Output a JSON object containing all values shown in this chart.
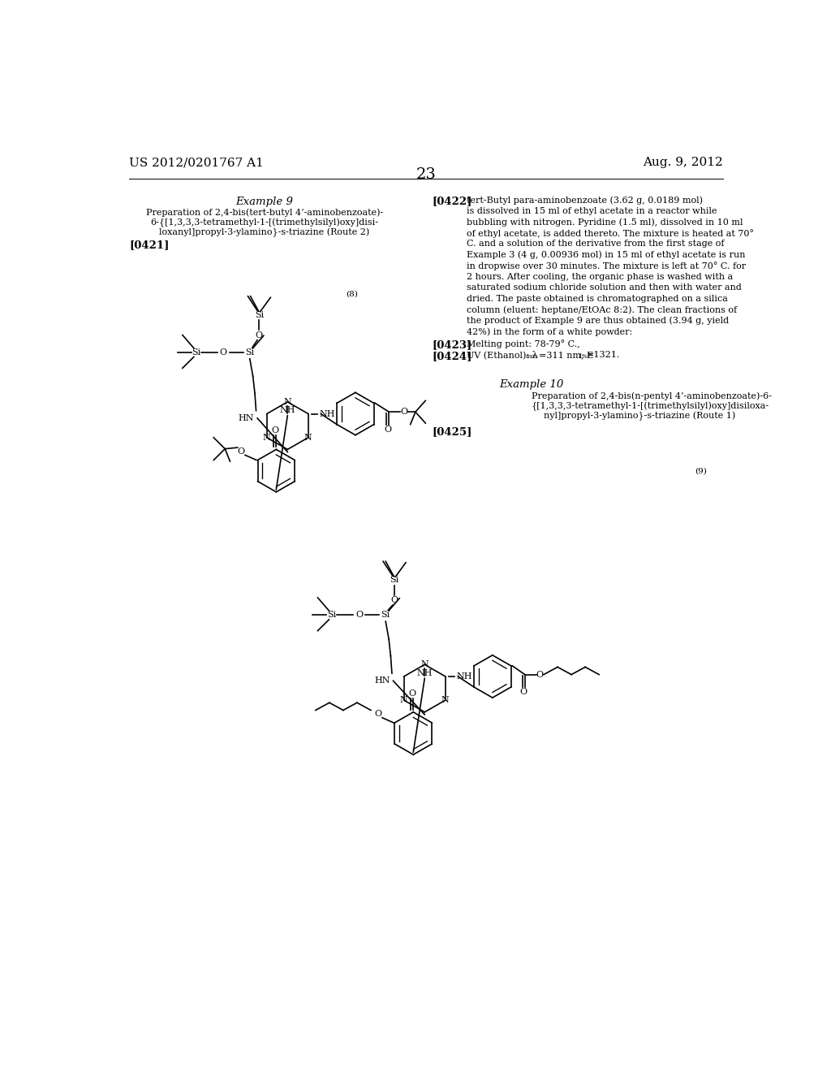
{
  "background_color": "#ffffff",
  "header_left": "US 2012/0201767 A1",
  "header_right": "Aug. 9, 2012",
  "header_center": "23",
  "col_divider": 0.5,
  "ex9_title": "Example 9",
  "ex9_sub1": "Preparation of 2,4-bis(tert-butyl 4’-aminobenzoate)-",
  "ex9_sub2": "6-{[1,3,3,3-tetramethyl-1-[(trimethylsilyl)oxy]disi-",
  "ex9_sub3": "loxanyl]propyl-3-ylamino}-s-triazine (Route 2)",
  "ex9_ref": "[0421]",
  "scheme8_label": "(8)",
  "ref0422_tag": "[0422]",
  "ref0422_text1": "tert-Butyl para-aminobenzoate (3.62 g, 0.0189 mol)",
  "ref0422_text2": "is dissolved in 15 ml of ethyl acetate in a reactor while",
  "ref0422_text3": "bubbling with nitrogen. Pyridine (1.5 ml), dissolved in 10 ml",
  "ref0422_text4": "of ethyl acetate, is added thereto. The mixture is heated at 70°",
  "ref0422_text5": "C. and a solution of the derivative from the first stage of",
  "ref0422_text6": "Example 3 (4 g, 0.00936 mol) in 15 ml of ethyl acetate is run",
  "ref0422_text7": "in dropwise over 30 minutes. The mixture is left at 70° C. for",
  "ref0422_text8": "2 hours. After cooling, the organic phase is washed with a",
  "ref0422_text9": "saturated sodium chloride solution and then with water and",
  "ref0422_text10": "dried. The paste obtained is chromatographed on a silica",
  "ref0422_text11": "column (eluent: heptane/EtOAc 8:2). The clean fractions of",
  "ref0422_text12": "the product of Example 9 are thus obtained (3.94 g, yield",
  "ref0422_text13": "42%) in the form of a white powder:",
  "ref0423_tag": "[0423]",
  "ref0423_text": "Melting point: 78-79° C.,",
  "ref0424_tag": "[0424]",
  "ref0424_text": "UV (Ethanol): λ_max=311 nm, E_1%=1321.",
  "ex10_title": "Example 10",
  "ex10_sub1": "Preparation of 2,4-bis(n-pentyl 4’-aminobenzoate)-6-",
  "ex10_sub2": "{[1,3,3,3-tetramethyl-1-[(trimethylsilyl)oxy]disiloxa-",
  "ex10_sub3": "nyl]propyl-3-ylamino}-s-triazine (Route 1)",
  "ex10_ref": "[0425]",
  "scheme9_label": "(9)"
}
